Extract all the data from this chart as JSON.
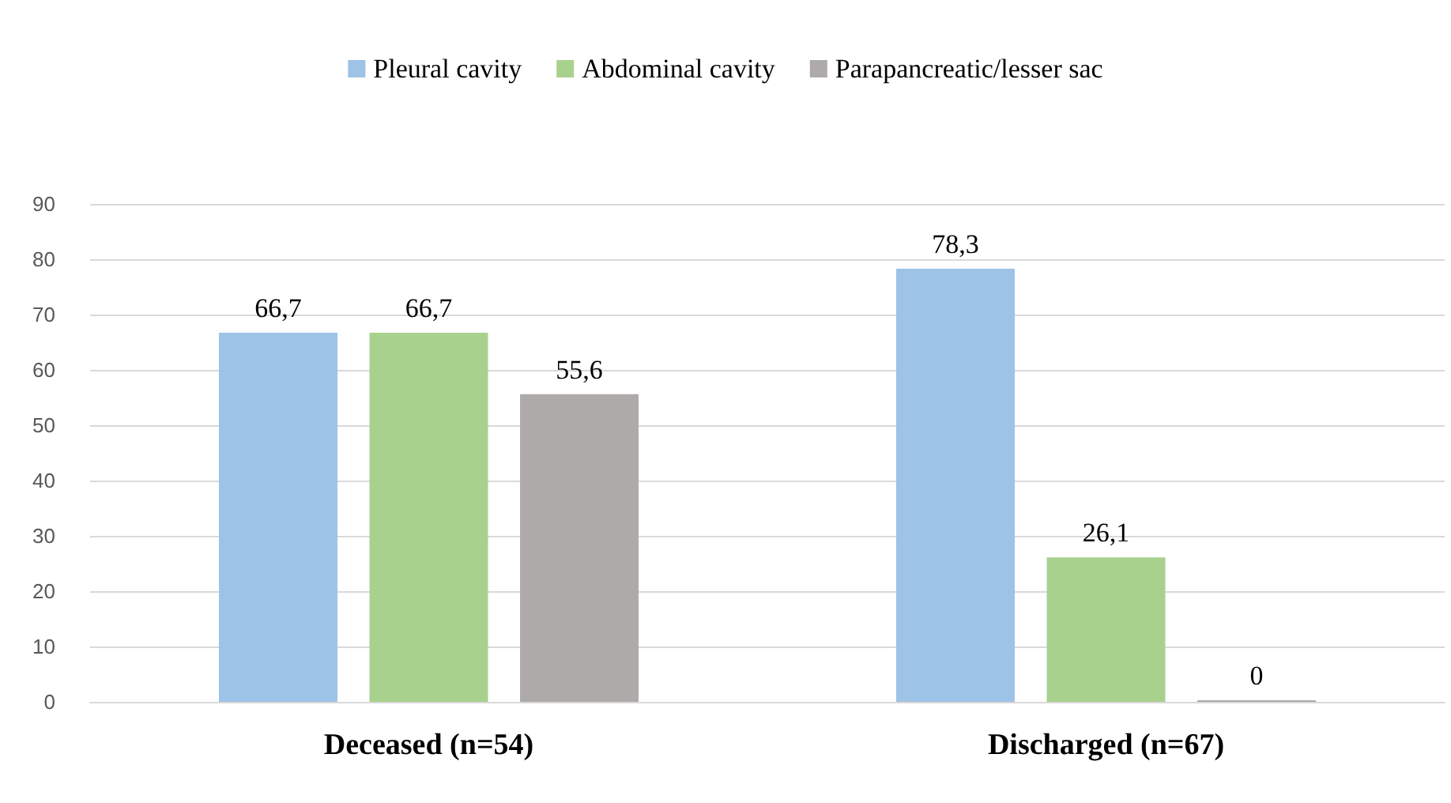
{
  "chart_data": {
    "type": "bar",
    "categories": [
      "Deceased (n=54)",
      "Discharged (n=67)"
    ],
    "series": [
      {
        "name": "Pleural cavity",
        "color": "#9dc3e6",
        "values": [
          66.7,
          78.3
        ],
        "value_labels": [
          "66,7",
          "78,3"
        ]
      },
      {
        "name": "Abdominal cavity",
        "color": "#a9d18e",
        "values": [
          66.7,
          26.1
        ],
        "value_labels": [
          "66,7",
          "26,1"
        ]
      },
      {
        "name": "Parapancreatic/lesser sac",
        "color": "#aeaaaa",
        "values": [
          55.6,
          0
        ],
        "value_labels": [
          "55,6",
          "0"
        ]
      }
    ],
    "ylim": [
      0,
      90
    ],
    "yticks": [
      0,
      10,
      20,
      30,
      40,
      50,
      60,
      70,
      80,
      90
    ],
    "grid": "y",
    "legend": "top"
  }
}
